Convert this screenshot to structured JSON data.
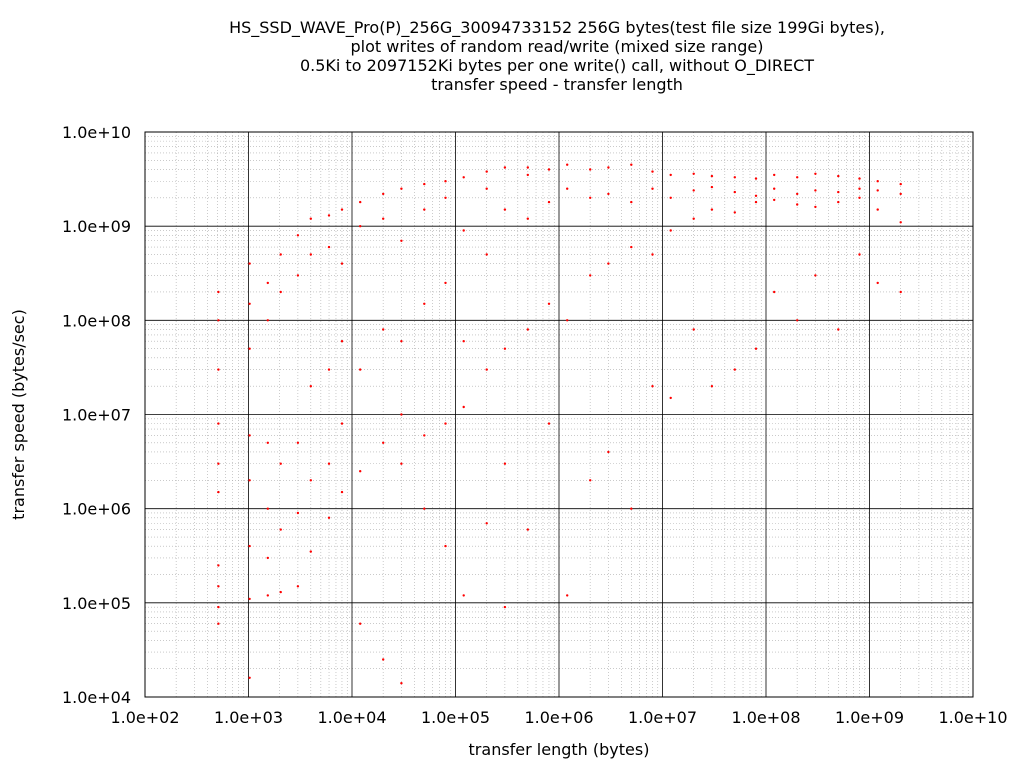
{
  "chart_data": {
    "type": "scatter",
    "title_lines": [
      "HS_SSD_WAVE_Pro(P)_256G_30094733152 256G bytes(test file size 199Gi bytes),",
      "plot writes of random read/write (mixed size range)",
      "0.5Ki to 2097152Ki bytes per one write() call, without O_DIRECT",
      "transfer speed - transfer length"
    ],
    "xlabel": "transfer length (bytes)",
    "ylabel": "transfer speed (bytes/sec)",
    "x_scale": "log",
    "y_scale": "log",
    "xlim": [
      100,
      10000000000
    ],
    "ylim": [
      10000,
      10000000000
    ],
    "x_ticks": [
      "1.0e+02",
      "1.0e+03",
      "1.0e+04",
      "1.0e+05",
      "1.0e+06",
      "1.0e+07",
      "1.0e+08",
      "1.0e+09",
      "1.0e+10"
    ],
    "y_ticks": [
      "1.0e+04",
      "1.0e+05",
      "1.0e+06",
      "1.0e+07",
      "1.0e+08",
      "1.0e+09",
      "1.0e+10"
    ],
    "grid": true,
    "legend": false,
    "marker_color": "#ff0000",
    "series": [
      {
        "points": [
          [
            512,
            60000
          ],
          [
            512,
            90000
          ],
          [
            512,
            150000
          ],
          [
            512,
            250000
          ],
          [
            512,
            1500000
          ],
          [
            512,
            3000000
          ],
          [
            512,
            8000000
          ],
          [
            512,
            30000000
          ],
          [
            512,
            100000000
          ],
          [
            512,
            200000000
          ],
          [
            1024,
            16000
          ],
          [
            1024,
            110000
          ],
          [
            1024,
            400000
          ],
          [
            1024,
            2000000
          ],
          [
            1024,
            6000000
          ],
          [
            1024,
            50000000
          ],
          [
            1024,
            150000000
          ],
          [
            1024,
            400000000
          ],
          [
            1536,
            120000
          ],
          [
            1536,
            300000
          ],
          [
            1536,
            1000000
          ],
          [
            1536,
            5000000
          ],
          [
            1536,
            100000000
          ],
          [
            1536,
            250000000
          ],
          [
            2048,
            130000
          ],
          [
            2048,
            600000
          ],
          [
            2048,
            3000000
          ],
          [
            2048,
            200000000
          ],
          [
            2048,
            500000000
          ],
          [
            3000,
            150000
          ],
          [
            3000,
            900000
          ],
          [
            3000,
            5000000
          ],
          [
            3000,
            300000000
          ],
          [
            3000,
            800000000
          ],
          [
            4000,
            350000
          ],
          [
            4000,
            2000000
          ],
          [
            4000,
            20000000
          ],
          [
            4000,
            500000000
          ],
          [
            4000,
            1200000000
          ],
          [
            6000,
            800000
          ],
          [
            6000,
            3000000
          ],
          [
            6000,
            30000000
          ],
          [
            6000,
            600000000
          ],
          [
            6000,
            1300000000
          ],
          [
            8000,
            1500000
          ],
          [
            8000,
            8000000
          ],
          [
            8000,
            60000000
          ],
          [
            8000,
            400000000
          ],
          [
            8000,
            1500000000
          ],
          [
            12000,
            60000
          ],
          [
            12000,
            2500000
          ],
          [
            12000,
            30000000
          ],
          [
            12000,
            1000000000
          ],
          [
            12000,
            1800000000
          ],
          [
            20000,
            25000
          ],
          [
            20000,
            5000000
          ],
          [
            20000,
            80000000
          ],
          [
            20000,
            1200000000
          ],
          [
            20000,
            2200000000
          ],
          [
            30000,
            14000
          ],
          [
            30000,
            3000000
          ],
          [
            30000,
            10000000
          ],
          [
            30000,
            60000000
          ],
          [
            30000,
            700000000
          ],
          [
            30000,
            2500000000
          ],
          [
            50000,
            1000000
          ],
          [
            50000,
            6000000
          ],
          [
            50000,
            150000000
          ],
          [
            50000,
            1500000000
          ],
          [
            50000,
            2800000000
          ],
          [
            80000,
            400000
          ],
          [
            80000,
            8000000
          ],
          [
            80000,
            250000000
          ],
          [
            80000,
            2000000000
          ],
          [
            80000,
            3000000000
          ],
          [
            120000,
            120000
          ],
          [
            120000,
            12000000
          ],
          [
            120000,
            60000000
          ],
          [
            120000,
            900000000
          ],
          [
            120000,
            3300000000
          ],
          [
            200000,
            700000
          ],
          [
            200000,
            30000000
          ],
          [
            200000,
            500000000
          ],
          [
            200000,
            2500000000
          ],
          [
            200000,
            3800000000
          ],
          [
            300000,
            90000
          ],
          [
            300000,
            3000000
          ],
          [
            300000,
            50000000
          ],
          [
            300000,
            1500000000
          ],
          [
            300000,
            4200000000
          ],
          [
            500000,
            600000
          ],
          [
            500000,
            80000000
          ],
          [
            500000,
            1200000000
          ],
          [
            500000,
            3500000000
          ],
          [
            500000,
            4200000000
          ],
          [
            800000,
            8000000
          ],
          [
            800000,
            150000000
          ],
          [
            800000,
            1800000000
          ],
          [
            800000,
            4000000000
          ],
          [
            1200000,
            120000
          ],
          [
            1200000,
            100000000
          ],
          [
            1200000,
            2500000000
          ],
          [
            1200000,
            4500000000
          ],
          [
            2000000,
            2000000
          ],
          [
            2000000,
            300000000
          ],
          [
            2000000,
            2000000000
          ],
          [
            2000000,
            4000000000
          ],
          [
            3000000,
            4000000
          ],
          [
            3000000,
            400000000
          ],
          [
            3000000,
            2200000000
          ],
          [
            3000000,
            4200000000
          ],
          [
            5000000,
            1000000
          ],
          [
            5000000,
            600000000
          ],
          [
            5000000,
            1800000000
          ],
          [
            5000000,
            4500000000
          ],
          [
            8000000,
            20000000
          ],
          [
            8000000,
            500000000
          ],
          [
            8000000,
            2500000000
          ],
          [
            8000000,
            3800000000
          ],
          [
            12000000,
            15000000
          ],
          [
            12000000,
            900000000
          ],
          [
            12000000,
            2000000000
          ],
          [
            12000000,
            3500000000
          ],
          [
            20000000,
            80000000
          ],
          [
            20000000,
            1200000000
          ],
          [
            20000000,
            2400000000
          ],
          [
            20000000,
            3600000000
          ],
          [
            30000000,
            20000000
          ],
          [
            30000000,
            1500000000
          ],
          [
            30000000,
            2600000000
          ],
          [
            30000000,
            3400000000
          ],
          [
            50000000,
            30000000
          ],
          [
            50000000,
            1400000000
          ],
          [
            50000000,
            2300000000
          ],
          [
            50000000,
            3300000000
          ],
          [
            80000000,
            50000000
          ],
          [
            80000000,
            1800000000
          ],
          [
            80000000,
            2100000000
          ],
          [
            80000000,
            3200000000
          ],
          [
            120000000,
            200000000
          ],
          [
            120000000,
            1900000000
          ],
          [
            120000000,
            2500000000
          ],
          [
            120000000,
            3500000000
          ],
          [
            200000000,
            100000000
          ],
          [
            200000000,
            1700000000
          ],
          [
            200000000,
            2200000000
          ],
          [
            200000000,
            3300000000
          ],
          [
            300000000,
            300000000
          ],
          [
            300000000,
            1600000000
          ],
          [
            300000000,
            2400000000
          ],
          [
            300000000,
            3600000000
          ],
          [
            500000000,
            80000000
          ],
          [
            500000000,
            1800000000
          ],
          [
            500000000,
            2300000000
          ],
          [
            500000000,
            3400000000
          ],
          [
            800000000,
            500000000
          ],
          [
            800000000,
            2000000000
          ],
          [
            800000000,
            2500000000
          ],
          [
            800000000,
            3200000000
          ],
          [
            1200000000,
            250000000
          ],
          [
            1200000000,
            1500000000
          ],
          [
            1200000000,
            2400000000
          ],
          [
            1200000000,
            3000000000
          ],
          [
            2000000000,
            200000000
          ],
          [
            2000000000,
            1100000000
          ],
          [
            2000000000,
            2200000000
          ],
          [
            2000000000,
            2800000000
          ]
        ]
      }
    ]
  }
}
